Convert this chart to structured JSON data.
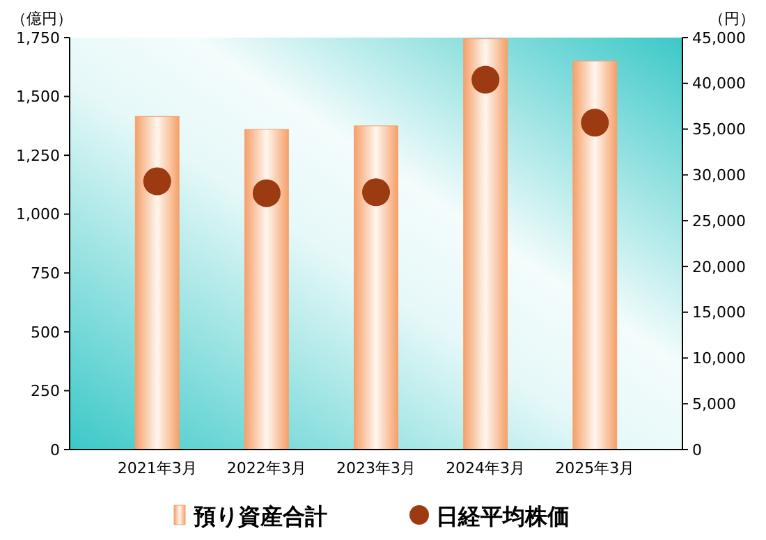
{
  "chart_data": {
    "type": "bar",
    "ylabel": "（億円）",
    "y2label": "（円）",
    "categories": [
      "2021年3月",
      "2022年3月",
      "2023年3月",
      "2024年3月",
      "2025年3月"
    ],
    "series": [
      {
        "name": "預り資産合計",
        "color": "#f5a06a",
        "values": [
          1415,
          1360,
          1375,
          1745,
          1650
        ]
      },
      {
        "name": "日経平均株価",
        "type": "scatter",
        "axis": "y2",
        "color": "#9c3a12",
        "marker": "circle",
        "values": [
          29300,
          28000,
          28100,
          40400,
          35700
        ]
      }
    ],
    "ylim": [
      0,
      1750
    ],
    "yticks": [
      0,
      250,
      500,
      750,
      {
        "value": 1000,
        "label": "1,000"
      },
      {
        "value": 1250,
        "label": "1,250"
      },
      {
        "value": 1500,
        "label": "1,500"
      },
      {
        "value": 1750,
        "label": "1,750"
      }
    ],
    "y2lim": [
      0,
      45000
    ],
    "y2ticks": [
      0,
      {
        "value": 5000,
        "label": "5,000"
      },
      {
        "value": 10000,
        "label": "10,000"
      },
      {
        "value": 15000,
        "label": "15,000"
      },
      {
        "value": 20000,
        "label": "20,000"
      },
      {
        "value": 25000,
        "label": "25,000"
      },
      {
        "value": 30000,
        "label": "30,000"
      },
      {
        "value": 35000,
        "label": "35,000"
      },
      {
        "value": 40000,
        "label": "40,000"
      },
      {
        "value": 45000,
        "label": "45,000"
      }
    ],
    "legend": "bottom"
  }
}
